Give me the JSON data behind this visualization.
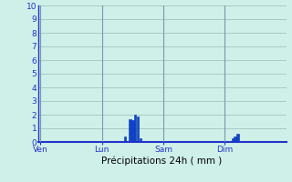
{
  "title": "Précipitations 24h ( mm )",
  "ylim": [
    0,
    10
  ],
  "yticks": [
    0,
    1,
    2,
    3,
    4,
    5,
    6,
    7,
    8,
    9,
    10
  ],
  "bg_color": "#cef0e8",
  "bar_color": "#1144cc",
  "bar_edge_color": "#0033aa",
  "grid_color": "#99bbbb",
  "vline_color": "#7799aa",
  "axis_color": "#2233cc",
  "day_labels": [
    "Ven",
    "Lun",
    "Sam",
    "Dim"
  ],
  "day_positions": [
    0,
    24,
    48,
    72
  ],
  "n_hours": 96,
  "bars": [
    {
      "hour": 33,
      "value": 0.4
    },
    {
      "hour": 35,
      "value": 1.7
    },
    {
      "hour": 36,
      "value": 1.6
    },
    {
      "hour": 37,
      "value": 2.0
    },
    {
      "hour": 38,
      "value": 1.9
    },
    {
      "hour": 39,
      "value": 0.3
    },
    {
      "hour": 75,
      "value": 0.3
    },
    {
      "hour": 76,
      "value": 0.4
    },
    {
      "hour": 77,
      "value": 0.6
    }
  ]
}
